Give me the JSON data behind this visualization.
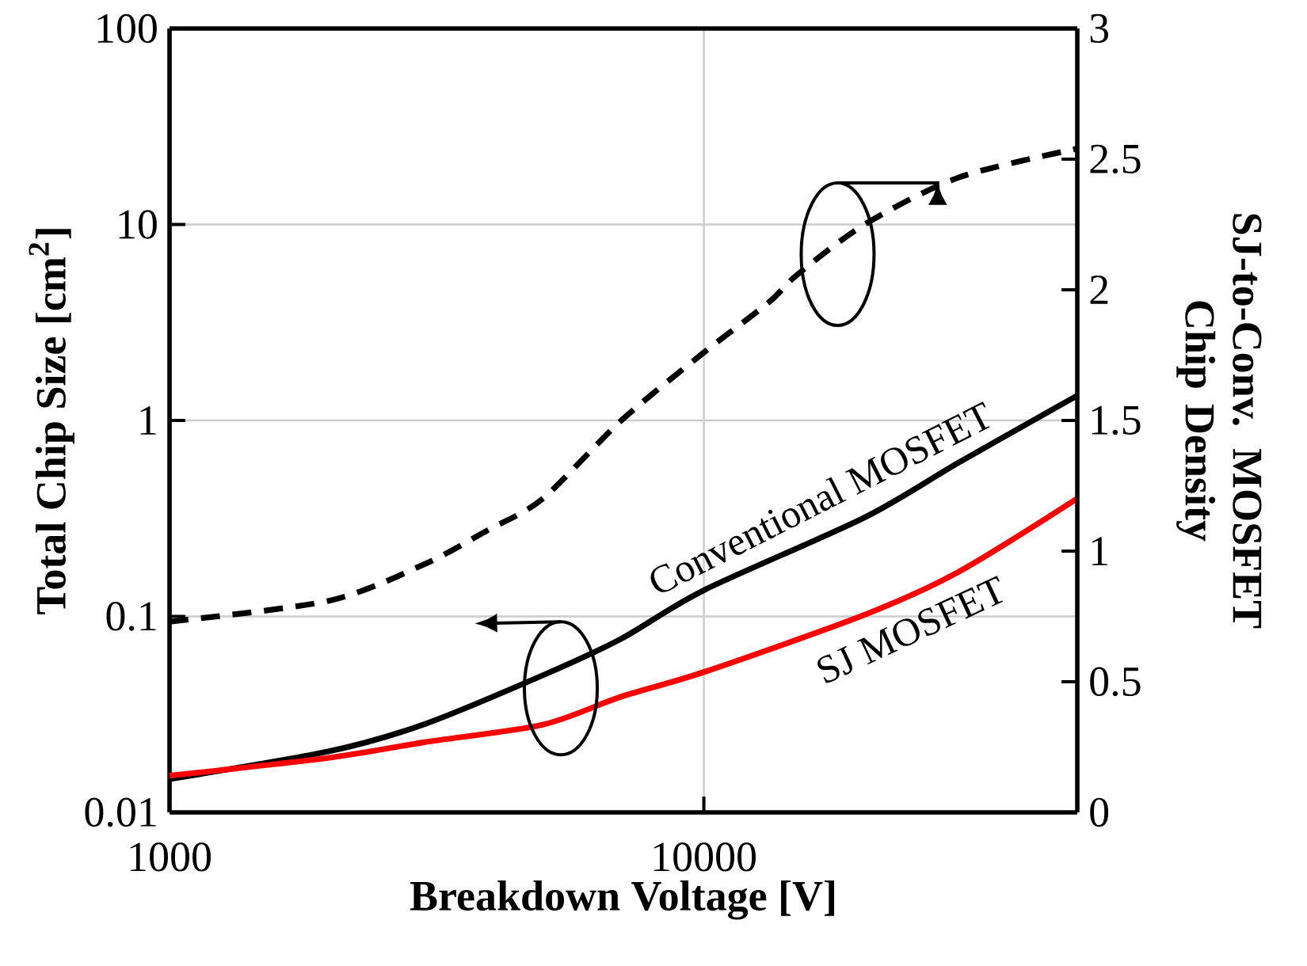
{
  "chart_data": {
    "type": "line",
    "xlabel": "Breakdown Voltage [V]",
    "ylabel": "Total Chip Size [cm$^{2}$]",
    "y2label": "SJ-to-Conv. MOSFET Chip Density",
    "log": "xy",
    "grid": true,
    "marker": "none",
    "xlim": [
      1000,
      50000
    ],
    "xticks": [
      1000,
      10000
    ],
    "ylim": [
      0.01,
      100
    ],
    "yticks": [
      0.01,
      0.1,
      1,
      10,
      100
    ],
    "y2lim": [
      0,
      3
    ],
    "y2ticks": [
      0,
      0.5,
      1,
      1.5,
      2,
      2.5,
      3
    ],
    "series": [
      {
        "name": "Conventional MOSFET",
        "color": "#000000",
        "line_style": "solid",
        "x": [
          1000,
          1990,
          3000,
          4990,
          7010,
          10000,
          20000,
          30000,
          50000
        ],
        "values": [
          0.0148,
          0.0205,
          0.0282,
          0.05,
          0.077,
          0.136,
          0.32,
          0.61,
          1.34
        ]
      },
      {
        "name": "SJ MOSFET",
        "color": "#ff0000",
        "line_style": "solid",
        "x": [
          1000,
          1990,
          3000,
          4990,
          7010,
          10000,
          20000,
          30000,
          50000
        ],
        "values": [
          0.0154,
          0.019,
          0.0228,
          0.028,
          0.039,
          0.052,
          0.102,
          0.169,
          0.4
        ]
      },
      {
        "color": "#000000",
        "line_style": "dashed",
        "axis": "y2",
        "x": [
          1000,
          1990,
          3000,
          3940,
          4990,
          7010,
          10000,
          13200,
          15000,
          20000,
          30000,
          50000
        ],
        "values": [
          0.73,
          0.81,
          0.95,
          1.08,
          1.2,
          1.5,
          1.76,
          1.95,
          2.06,
          2.25,
          2.43,
          2.54
        ]
      }
    ]
  }
}
